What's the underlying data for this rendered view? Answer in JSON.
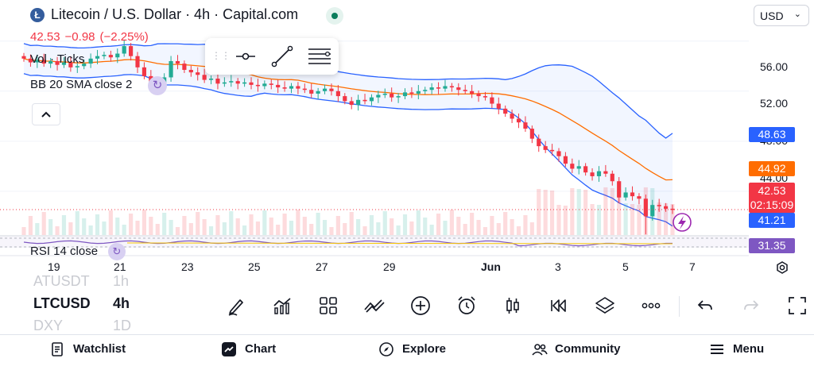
{
  "header": {
    "logo_glyph": "Ł",
    "title": "Litecoin / U.S. Dollar · 4h · Capital.com",
    "currency": "USD"
  },
  "quote": {
    "last": "42.53",
    "change": "−0.98",
    "change_pct": "(−2.25%)"
  },
  "indicators": {
    "volume": "Vol · Ticks",
    "bollinger": "BB 20 SMA close 2",
    "rsi": "RSI 14 close"
  },
  "price_scale": {
    "ticks": [
      "56.00",
      "52.00",
      "48.00",
      "44.00"
    ],
    "bb_upper": "48.63",
    "bb_basis": "44.92",
    "last_price": "42.53",
    "countdown": "02:15:09",
    "bb_lower": "41.21",
    "rsi": "31.35"
  },
  "time_axis": [
    "19",
    "21",
    "23",
    "25",
    "27",
    "29",
    "Jun",
    "3",
    "5",
    "7"
  ],
  "symbols": [
    {
      "symbol": "ATUSDT",
      "interval": "1h"
    },
    {
      "symbol": "LTCUSD",
      "interval": "4h"
    },
    {
      "symbol": "DXY",
      "interval": "1D"
    }
  ],
  "toolbar_icons": [
    "draw-icon",
    "indicators-icon",
    "layouts-icon",
    "compare-icon",
    "add-icon",
    "alert-icon",
    "chart-type-icon",
    "replay-icon",
    "layers-icon",
    "more-icon",
    "undo-icon",
    "redo-icon",
    "fullscreen-icon"
  ],
  "nav": {
    "watchlist": "Watchlist",
    "chart": "Chart",
    "explore": "Explore",
    "community": "Community",
    "menu": "Menu"
  },
  "colors": {
    "up": "#22ab94",
    "down": "#f23645",
    "bb_band": "#2962ff",
    "bb_basis": "#ff6d00",
    "rsi": "#7e57c2",
    "accent": "#2962ff"
  },
  "chart_data": {
    "type": "candlestick",
    "interval": "4h",
    "approx_close": [
      54.6,
      54.3,
      54.5,
      54.2,
      54.4,
      54.1,
      54.3,
      53.9,
      54.0,
      54.2,
      54.6,
      54.8,
      54.9,
      54.7,
      55.0,
      55.6,
      54.8,
      53.9,
      53.2,
      52.4,
      52.3,
      53.1,
      54.4,
      54.2,
      53.7,
      53.5,
      53.3,
      52.9,
      53.0,
      52.6,
      52.7,
      52.8,
      52.6,
      52.7,
      52.5,
      52.4,
      52.6,
      52.5,
      52.3,
      52.2,
      52.4,
      52.2,
      52.1,
      51.8,
      52.0,
      52.2,
      52.0,
      51.6,
      51.2,
      50.9,
      51.3,
      51.2,
      51.5,
      51.7,
      51.8,
      51.5,
      51.6,
      51.9,
      51.8,
      52.0,
      52.1,
      52.3,
      52.2,
      52.4,
      52.3,
      52.1,
      52.0,
      51.8,
      51.6,
      51.5,
      51.0,
      50.6,
      50.2,
      49.8,
      49.5,
      49.0,
      48.2,
      47.6,
      47.3,
      47.2,
      46.8,
      46.2,
      45.8,
      46.0,
      45.5,
      45.2,
      45.6,
      45.4,
      44.8,
      43.5,
      43.9,
      43.6,
      43.4,
      42.0,
      42.9,
      42.8,
      42.6,
      42.53
    ],
    "bb_upper_end": 48.63,
    "bb_basis_end": 44.92,
    "bb_lower_end": 41.21,
    "rsi_last": 31.35,
    "ylim": [
      40.5,
      57
    ]
  }
}
